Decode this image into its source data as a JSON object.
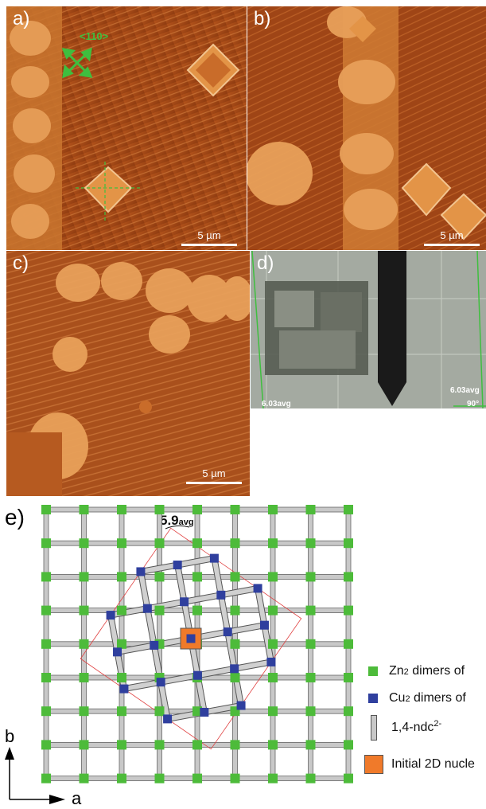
{
  "figure": {
    "panels": {
      "a": {
        "letter": "a)",
        "direction_label": "<110>",
        "scale": "5 µm"
      },
      "b": {
        "letter": "b)",
        "scale": "5 µm"
      },
      "c": {
        "letter": "c)",
        "scale": "5 µm"
      },
      "d": {
        "letter": "d)",
        "angle_left": "6.03avg",
        "angle_right": "6.03avg",
        "angle_corner": "90°"
      }
    },
    "scheme": {
      "letter": "e)",
      "angle_label": "5.9",
      "angle_sub": "avg",
      "axis_b": "b",
      "axis_a": "a",
      "legend": [
        {
          "key": "zn",
          "color": "#4dbb3a",
          "text_main": "Zn",
          "text_sub": "2",
          "text_rest": " dimers of"
        },
        {
          "key": "cu",
          "color": "#2f3f9e",
          "text_main": "Cu",
          "text_sub": "2",
          "text_rest": " dimers of"
        },
        {
          "key": "ndc",
          "color": "#c8c8c8",
          "text_main": "1,4-ndc",
          "text_sup": "2-"
        },
        {
          "key": "nucleus",
          "color": "#f07a2a",
          "text_main": "Initial 2D nucle"
        }
      ]
    }
  }
}
